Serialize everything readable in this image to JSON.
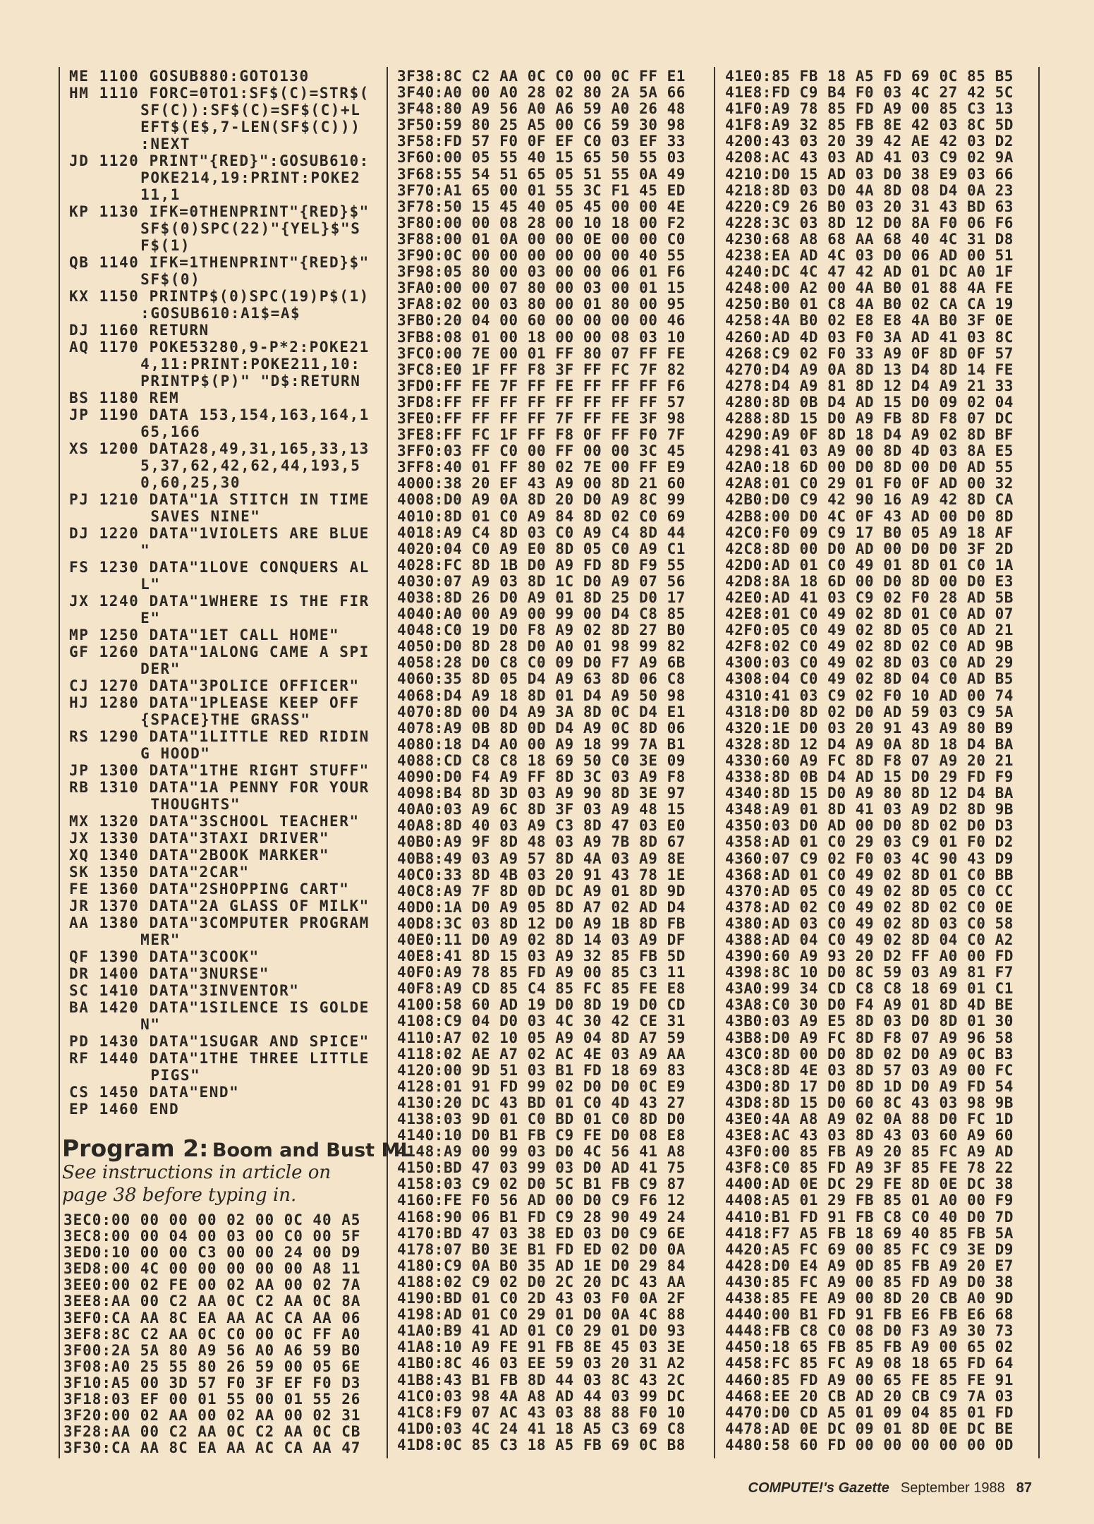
{
  "basic_listing": [
    {
      "code": "ME",
      "num": "1100",
      "text": [
        "GOSUB880:GOTO130"
      ]
    },
    {
      "code": "HM",
      "num": "1110",
      "text": [
        "FORC=0TO1:SF$(C)=STR$(",
        "SF(C)):SF$(C)=SF$(C)+L",
        "EFT$(E$,7-LEN(SF$(C)))",
        ":NEXT"
      ]
    },
    {
      "code": "JD",
      "num": "1120",
      "text": [
        "PRINT\"{RED}\":GOSUB610:",
        "POKE214,19:PRINT:POKE2",
        "11,1"
      ]
    },
    {
      "code": "KP",
      "num": "1130",
      "text": [
        "IFK=0THENPRINT\"{RED}$\"",
        "SF$(0)SPC(22)\"{YEL}$\"S",
        "F$(1)"
      ]
    },
    {
      "code": "QB",
      "num": "1140",
      "text": [
        "IFK=1THENPRINT\"{RED}$\"",
        "SF$(0)"
      ]
    },
    {
      "code": "KX",
      "num": "1150",
      "text": [
        "PRINTP$(0)SPC(19)P$(1)",
        ":GOSUB610:A1$=A$"
      ]
    },
    {
      "code": "DJ",
      "num": "1160",
      "text": [
        "RETURN"
      ]
    },
    {
      "code": "AQ",
      "num": "1170",
      "text": [
        "POKE53280,9-P*2:POKE21",
        "4,11:PRINT:POKE211,10:",
        "PRINTP$(P)\" \"D$:RETURN"
      ]
    },
    {
      "code": "BS",
      "num": "1180",
      "text": [
        "REM"
      ]
    },
    {
      "code": "JP",
      "num": "1190",
      "text": [
        "DATA 153,154,163,164,1",
        "65,166"
      ]
    },
    {
      "code": "XS",
      "num": "1200",
      "text": [
        "DATA28,49,31,165,33,13",
        "5,37,62,42,62,44,193,5",
        "0,60,25,30"
      ]
    },
    {
      "code": "PJ",
      "num": "1210",
      "text": [
        "DATA\"1A STITCH IN TIME",
        " SAVES NINE\""
      ]
    },
    {
      "code": "DJ",
      "num": "1220",
      "text": [
        "DATA\"1VIOLETS ARE BLUE",
        "\""
      ]
    },
    {
      "code": "FS",
      "num": "1230",
      "text": [
        "DATA\"1LOVE CONQUERS AL",
        "L\""
      ]
    },
    {
      "code": "JX",
      "num": "1240",
      "text": [
        "DATA\"1WHERE IS THE FIR",
        "E\""
      ]
    },
    {
      "code": "MP",
      "num": "1250",
      "text": [
        "DATA\"1ET CALL HOME\""
      ]
    },
    {
      "code": "GF",
      "num": "1260",
      "text": [
        "DATA\"1ALONG CAME A SPI",
        "DER\""
      ]
    },
    {
      "code": "CJ",
      "num": "1270",
      "text": [
        "DATA\"3POLICE OFFICER\""
      ]
    },
    {
      "code": "HJ",
      "num": "1280",
      "text": [
        "DATA\"1PLEASE KEEP OFF",
        "{SPACE}THE GRASS\""
      ]
    },
    {
      "code": "RS",
      "num": "1290",
      "text": [
        "DATA\"1LITTLE RED RIDIN",
        "G HOOD\""
      ]
    },
    {
      "code": "JP",
      "num": "1300",
      "text": [
        "DATA\"1THE RIGHT STUFF\""
      ]
    },
    {
      "code": "RB",
      "num": "1310",
      "text": [
        "DATA\"1A PENNY FOR YOUR",
        " THOUGHTS\""
      ]
    },
    {
      "code": "MX",
      "num": "1320",
      "text": [
        "DATA\"3SCHOOL TEACHER\""
      ]
    },
    {
      "code": "JX",
      "num": "1330",
      "text": [
        "DATA\"3TAXI DRIVER\""
      ]
    },
    {
      "code": "XQ",
      "num": "1340",
      "text": [
        "DATA\"2BOOK MARKER\""
      ]
    },
    {
      "code": "SK",
      "num": "1350",
      "text": [
        "DATA\"2CAR\""
      ]
    },
    {
      "code": "FE",
      "num": "1360",
      "text": [
        "DATA\"2SHOPPING CART\""
      ]
    },
    {
      "code": "JR",
      "num": "1370",
      "text": [
        "DATA\"2A GLASS OF MILK\""
      ]
    },
    {
      "code": "AA",
      "num": "1380",
      "text": [
        "DATA\"3COMPUTER PROGRAM",
        "MER\""
      ]
    },
    {
      "code": "QF",
      "num": "1390",
      "text": [
        "DATA\"3COOK\""
      ]
    },
    {
      "code": "DR",
      "num": "1400",
      "text": [
        "DATA\"3NURSE\""
      ]
    },
    {
      "code": "SC",
      "num": "1410",
      "text": [
        "DATA\"3INVENTOR\""
      ]
    },
    {
      "code": "BA",
      "num": "1420",
      "text": [
        "DATA\"1SILENCE IS GOLDE",
        "N\""
      ]
    },
    {
      "code": "PD",
      "num": "1430",
      "text": [
        "DATA\"1SUGAR AND SPICE\""
      ]
    },
    {
      "code": "RF",
      "num": "1440",
      "text": [
        "DATA\"1THE THREE LITTLE",
        " PIGS\""
      ]
    },
    {
      "code": "CS",
      "num": "1450",
      "text": [
        "DATA\"END\""
      ]
    },
    {
      "code": "EP",
      "num": "1460",
      "text": [
        "END"
      ]
    }
  ],
  "program2": {
    "title_main": "Program 2:",
    "title_sub": "Boom and Bust ML",
    "note": "See instructions in article on page 38 before typing in."
  },
  "hex_columns": [
    {
      "rows": [
        "3EC0:00 00 00 00 02 00 0C 40 A5",
        "3EC8:00 00 04 00 03 00 C0 00 5F",
        "3ED0:10 00 00 C3 00 00 24 00 D9",
        "3ED8:00 4C 00 00 00 00 00 A8 11",
        "3EE0:00 02 FE 00 02 AA 00 02 7A",
        "3EE8:AA 00 C2 AA 0C C2 AA 0C 8A",
        "3EF0:CA AA 8C EA AA AC CA AA 06",
        "3EF8:8C C2 AA 0C C0 00 0C FF A0",
        "3F00:2A 5A 80 A9 56 A0 A6 59 B0",
        "3F08:A0 25 55 80 26 59 00 05 6E",
        "3F10:A5 00 3D 57 F0 3F EF F0 D3",
        "3F18:03 EF 00 01 55 00 01 55 26",
        "3F20:00 02 AA 00 02 AA 00 02 31",
        "3F28:AA 00 C2 AA 0C C2 AA 0C CB",
        "3F30:CA AA 8C EA AA AC CA AA 47"
      ]
    },
    {
      "rows": [
        "3F38:8C C2 AA 0C C0 00 0C FF E1",
        "3F40:A0 00 A0 28 02 80 2A 5A 66",
        "3F48:80 A9 56 A0 A6 59 A0 26 48",
        "3F50:59 80 25 A5 00 C6 59 30 98",
        "3F58:FD 57 F0 0F EF C0 03 EF 33",
        "3F60:00 05 55 40 15 65 50 55 03",
        "3F68:55 54 51 65 05 51 55 0A 49",
        "3F70:A1 65 00 01 55 3C F1 45 ED",
        "3F78:50 15 45 40 05 45 00 00 4E",
        "3F80:00 00 08 28 00 10 18 00 F2",
        "3F88:00 01 0A 00 00 0E 00 00 C0",
        "3F90:0C 00 00 00 00 00 00 40 55",
        "3F98:05 80 00 03 00 00 06 01 F6",
        "3FA0:00 00 07 80 00 03 00 01 15",
        "3FA8:02 00 03 80 00 01 80 00 95",
        "3FB0:20 04 00 60 00 00 00 00 46",
        "3FB8:08 01 00 18 00 00 08 03 10",
        "3FC0:00 7E 00 01 FF 80 07 FF FE",
        "3FC8:E0 1F FF F8 3F FF FC 7F 82",
        "3FD0:FF FE 7F FF FE FF FF FF F6",
        "3FD8:FF FF FF FF FF FF FF FF 57",
        "3FE0:FF FF FF FF 7F FF FE 3F 98",
        "3FE8:FF FC 1F FF F8 0F FF F0 7F",
        "3FF0:03 FF C0 00 FF 00 00 3C 45",
        "3FF8:40 01 FF 80 02 7E 00 FF E9",
        "4000:38 20 EF 43 A9 00 8D 21 60",
        "4008:D0 A9 0A 8D 20 D0 A9 8C 99",
        "4010:8D 01 C0 A9 84 8D 02 C0 69",
        "4018:A9 C4 8D 03 C0 A9 C4 8D 44",
        "4020:04 C0 A9 E0 8D 05 C0 A9 C1",
        "4028:FC 8D 1B D0 A9 FD 8D F9 55",
        "4030:07 A9 03 8D 1C D0 A9 07 56",
        "4038:8D 26 D0 A9 01 8D 25 D0 17",
        "4040:A0 00 A9 00 99 00 D4 C8 85",
        "4048:C0 19 D0 F8 A9 02 8D 27 B0",
        "4050:D0 8D 28 D0 A0 01 98 99 82",
        "4058:28 D0 C8 C0 09 D0 F7 A9 6B",
        "4060:35 8D 05 D4 A9 63 8D 06 C8",
        "4068:D4 A9 18 8D 01 D4 A9 50 98",
        "4070:8D 00 D4 A9 3A 8D 0C D4 E1",
        "4078:A9 0B 8D 0D D4 A9 0C 8D 06",
        "4080:18 D4 A0 00 A9 18 99 7A B1",
        "4088:CD C8 C8 18 69 50 C0 3E 09",
        "4090:D0 F4 A9 FF 8D 3C 03 A9 F8",
        "4098:B4 8D 3D 03 A9 90 8D 3E 97",
        "40A0:03 A9 6C 8D 3F 03 A9 48 15",
        "40A8:8D 40 03 A9 C3 8D 47 03 E0",
        "40B0:A9 9F 8D 48 03 A9 7B 8D 67",
        "40B8:49 03 A9 57 8D 4A 03 A9 8E",
        "40C0:33 8D 4B 03 20 91 43 78 1E",
        "40C8:A9 7F 8D 0D DC A9 01 8D 9D",
        "40D0:1A D0 A9 05 8D A7 02 AD D4",
        "40D8:3C 03 8D 12 D0 A9 1B 8D FB",
        "40E0:11 D0 A9 02 8D 14 03 A9 DF",
        "40E8:41 8D 15 03 A9 32 85 FB 5D",
        "40F0:A9 78 85 FD A9 00 85 C3 11",
        "40F8:A9 CD 85 C4 85 FC 85 FE E8",
        "4100:58 60 AD 19 D0 8D 19 D0 CD",
        "4108:C9 04 D0 03 4C 30 42 CE 31",
        "4110:A7 02 10 05 A9 04 8D A7 59",
        "4118:02 AE A7 02 AC 4E 03 A9 AA",
        "4120:00 9D 51 03 B1 FD 18 69 83",
        "4128:01 91 FD 99 02 D0 D0 0C E9",
        "4130:20 DC 43 BD 01 C0 4D 43 27",
        "4138:03 9D 01 C0 BD 01 C0 8D D0",
        "4140:10 D0 B1 FB C9 FE D0 08 E8",
        "4148:A9 00 99 03 D0 4C 56 41 A8",
        "4150:BD 47 03 99 03 D0 AD 41 75",
        "4158:03 C9 02 D0 5C B1 FB C9 87",
        "4160:FE F0 56 AD 00 D0 C9 F6 12",
        "4168:90 06 B1 FD C9 28 90 49 24",
        "4170:BD 47 03 38 ED 03 D0 C9 6E",
        "4178:07 B0 3E B1 FD ED 02 D0 0A",
        "4180:C9 0A B0 35 AD 1E D0 29 84",
        "4188:02 C9 02 D0 2C 20 DC 43 AA",
        "4190:BD 01 C0 2D 43 03 F0 0A 2F",
        "4198:AD 01 C0 29 01 D0 0A 4C 88",
        "41A0:B9 41 AD 01 C0 29 01 D0 93",
        "41A8:10 A9 FE 91 FB 8E 45 03 3E",
        "41B0:8C 46 03 EE 59 03 20 31 A2",
        "41B8:43 B1 FB 8D 44 03 8C 43 2C",
        "41C0:03 98 4A A8 AD 44 03 99 DC",
        "41C8:F9 07 AC 43 03 88 88 F0 10",
        "41D0:03 4C 24 41 18 A5 C3 69 C8",
        "41D8:0C 85 C3 18 A5 FB 69 0C B8"
      ]
    },
    {
      "rows": [
        "41E0:85 FB 18 A5 FD 69 0C 85 B5",
        "41E8:FD C9 B4 F0 03 4C 27 42 5C",
        "41F0:A9 78 85 FD A9 00 85 C3 13",
        "41F8:A9 32 85 FB 8E 42 03 8C 5D",
        "4200:43 03 20 39 42 AE 42 03 D2",
        "4208:AC 43 03 AD 41 03 C9 02 9A",
        "4210:D0 15 AD 03 D0 38 E9 03 66",
        "4218:8D 03 D0 4A 8D 08 D4 0A 23",
        "4220:C9 26 B0 03 20 31 43 BD 63",
        "4228:3C 03 8D 12 D0 8A F0 06 F6",
        "4230:68 A8 68 AA 68 40 4C 31 D8",
        "4238:EA AD 4C 03 D0 06 AD 00 51",
        "4240:DC 4C 47 42 AD 01 DC A0 1F",
        "4248:00 A2 00 4A B0 01 88 4A FE",
        "4250:B0 01 C8 4A B0 02 CA CA 19",
        "4258:4A B0 02 E8 E8 4A B0 3F 0E",
        "4260:AD 4D 03 F0 3A AD 41 03 8C",
        "4268:C9 02 F0 33 A9 0F 8D 0F 57",
        "4270:D4 A9 0A 8D 13 D4 8D 14 FE",
        "4278:D4 A9 81 8D 12 D4 A9 21 33",
        "4280:8D 0B D4 AD 15 D0 09 02 04",
        "4288:8D 15 D0 A9 FB 8D F8 07 DC",
        "4290:A9 0F 8D 18 D4 A9 02 8D BF",
        "4298:41 03 A9 00 8D 4D 03 8A E5",
        "42A0:18 6D 00 D0 8D 00 D0 AD 55",
        "42A8:01 C0 29 01 F0 0F AD 00 32",
        "42B0:D0 C9 42 90 16 A9 42 8D CA",
        "42B8:00 D0 4C 0F 43 AD 00 D0 8D",
        "42C0:F0 09 C9 17 B0 05 A9 18 AF",
        "42C8:8D 00 D0 AD 00 D0 D0 3F 2D",
        "42D0:AD 01 C0 49 01 8D 01 C0 1A",
        "42D8:8A 18 6D 00 D0 8D 00 D0 E3",
        "42E0:AD 41 03 C9 02 F0 28 AD 5B",
        "42E8:01 C0 49 02 8D 01 C0 AD 07",
        "42F0:05 C0 49 02 8D 05 C0 AD 21",
        "42F8:02 C0 49 02 8D 02 C0 AD 9B",
        "4300:03 C0 49 02 8D 03 C0 AD 29",
        "4308:04 C0 49 02 8D 04 C0 AD B5",
        "4310:41 03 C9 02 F0 10 AD 00 74",
        "4318:D0 8D 02 D0 AD 59 03 C9 5A",
        "4320:1E D0 03 20 91 43 A9 80 B9",
        "4328:8D 12 D4 A9 0A 8D 18 D4 BA",
        "4330:60 A9 FC 8D F8 07 A9 20 21",
        "4338:8D 0B D4 AD 15 D0 29 FD F9",
        "4340:8D 15 D0 A9 80 8D 12 D4 BA",
        "4348:A9 01 8D 41 03 A9 D2 8D 9B",
        "4350:03 D0 AD 00 D0 8D 02 D0 D3",
        "4358:AD 01 C0 29 03 C9 01 F0 D2",
        "4360:07 C9 02 F0 03 4C 90 43 D9",
        "4368:AD 01 C0 49 02 8D 01 C0 BB",
        "4370:AD 05 C0 49 02 8D 05 C0 CC",
        "4378:AD 02 C0 49 02 8D 02 C0 0E",
        "4380:AD 03 C0 49 02 8D 03 C0 58",
        "4388:AD 04 C0 49 02 8D 04 C0 A2",
        "4390:60 A9 93 20 D2 FF A0 00 FD",
        "4398:8C 10 D0 8C 59 03 A9 81 F7",
        "43A0:99 34 CD C8 C8 18 69 01 C1",
        "43A8:C0 30 D0 F4 A9 01 8D 4D BE",
        "43B0:03 A9 E5 8D 03 D0 8D 01 30",
        "43B8:D0 A9 FC 8D F8 07 A9 96 58",
        "43C0:8D 00 D0 8D 02 D0 A9 0C B3",
        "43C8:8D 4E 03 8D 57 03 A9 00 FC",
        "43D0:8D 17 D0 8D 1D D0 A9 FD 54",
        "43D8:8D 15 D0 60 8C 43 03 98 9B",
        "43E0:4A A8 A9 02 0A 88 D0 FC 1D",
        "43E8:AC 43 03 8D 43 03 60 A9 60",
        "43F0:00 85 FB A9 20 85 FC A9 AD",
        "43F8:C0 85 FD A9 3F 85 FE 78 22",
        "4400:AD 0E DC 29 FE 8D 0E DC 38",
        "4408:A5 01 29 FB 85 01 A0 00 F9",
        "4410:B1 FD 91 FB C8 C0 40 D0 7D",
        "4418:F7 A5 FB 18 69 40 85 FB 5A",
        "4420:A5 FC 69 00 85 FC C9 3E D9",
        "4428:D0 E4 A9 0D 85 FB A9 20 E7",
        "4430:85 FC A9 00 85 FD A9 D0 38",
        "4438:85 FE A9 00 8D 20 CB A0 9D",
        "4440:00 B1 FD 91 FB E6 FB E6 68",
        "4448:FB C8 C0 08 D0 F3 A9 30 73",
        "4450:18 65 FB 85 FB A9 00 65 02",
        "4458:FC 85 FC A9 08 18 65 FD 64",
        "4460:85 FD A9 00 65 FE 85 FE 91",
        "4468:EE 20 CB AD 20 CB C9 7A 03",
        "4470:D0 CD A5 01 09 04 85 01 FD",
        "4478:AD 0E DC 09 01 8D 0E DC BE",
        "4480:58 60 FD 00 00 00 00 00 0D"
      ]
    }
  ],
  "footer": {
    "magazine": "COMPUTE!'s Gazette",
    "date": "September 1988",
    "page": "87"
  }
}
